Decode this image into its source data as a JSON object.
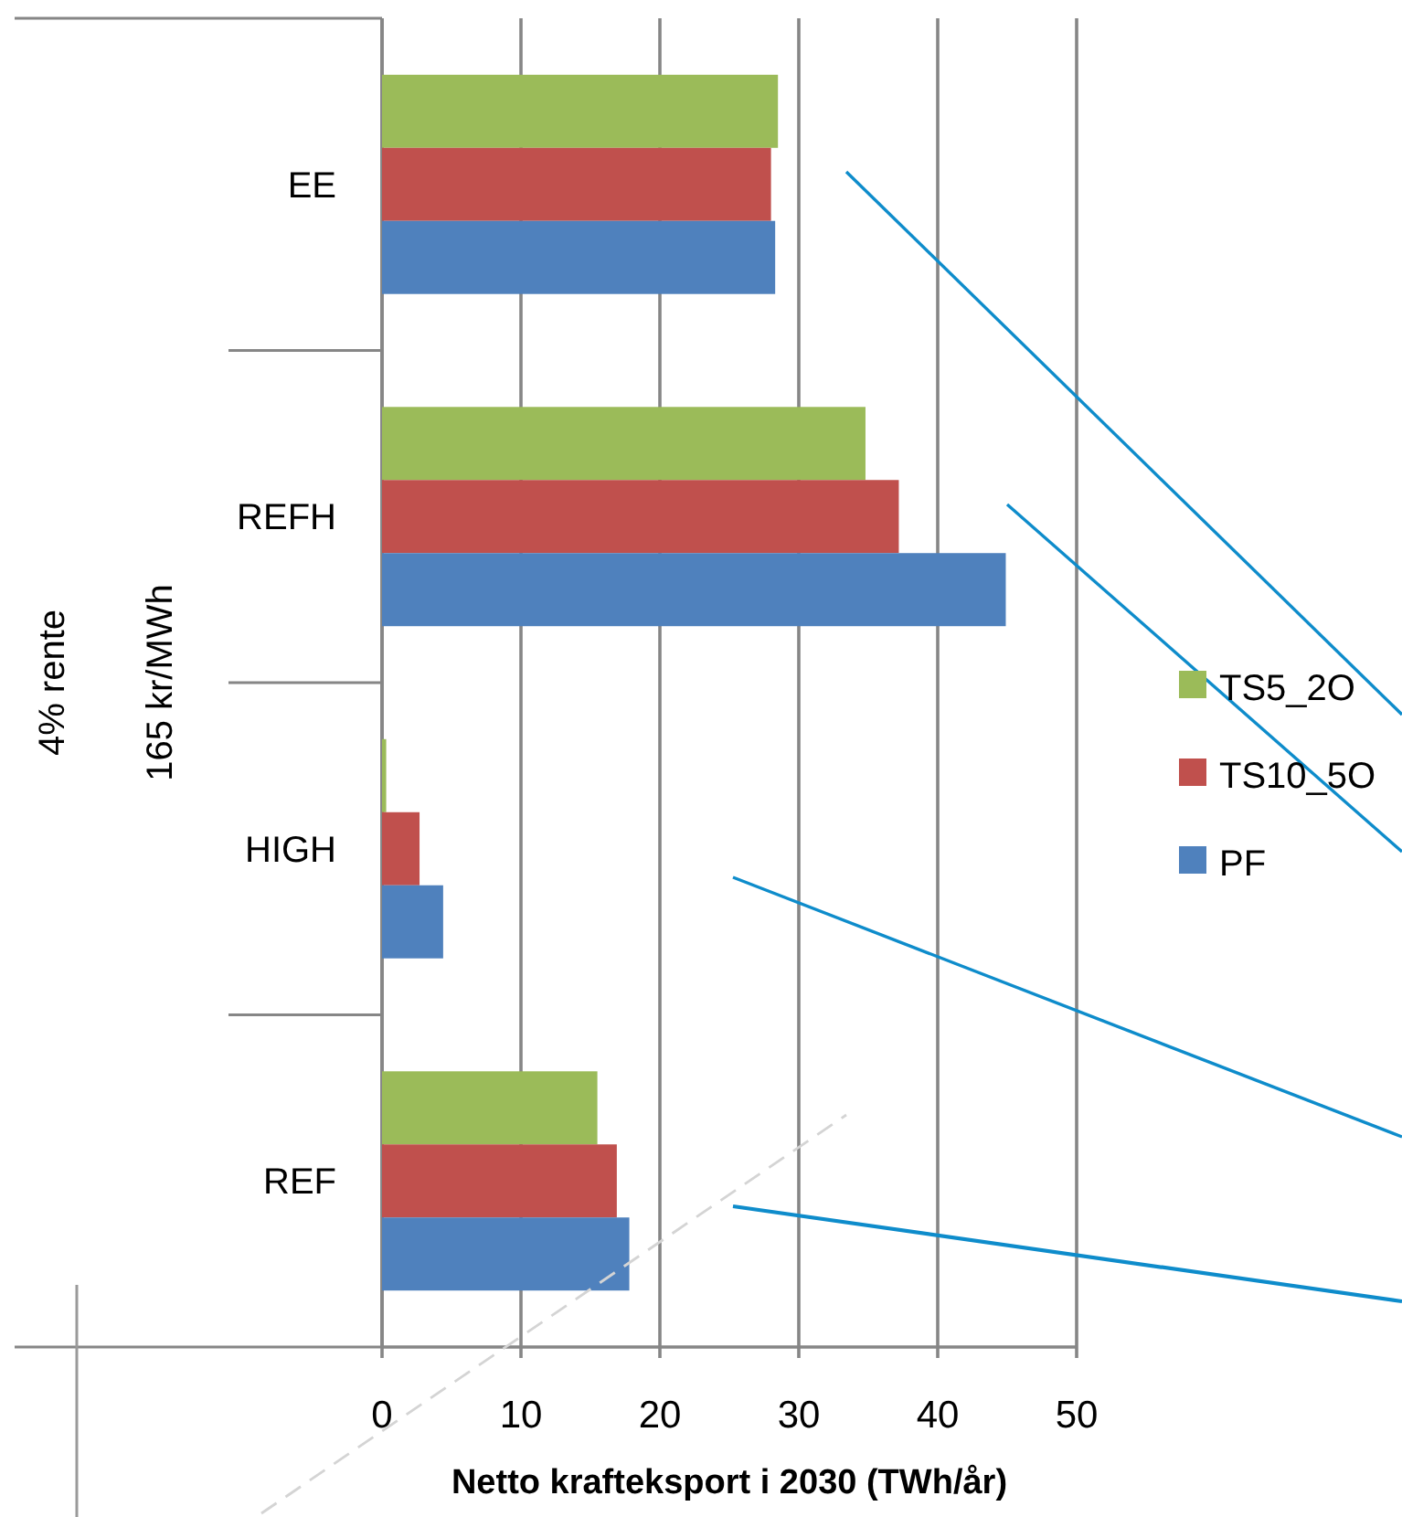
{
  "chart_data": {
    "type": "bar",
    "orientation": "horizontal",
    "categories": [
      "EE",
      "REFH",
      "HIGH",
      "REF"
    ],
    "series": [
      {
        "name": "TS5_2O",
        "color": "#9bbb59",
        "values": [
          28.5,
          34.8,
          0.3,
          15.5
        ]
      },
      {
        "name": "TS10_5O",
        "color": "#c0504d",
        "values": [
          28.0,
          37.2,
          2.7,
          16.9
        ]
      },
      {
        "name": "PF",
        "color": "#4f81bd",
        "values": [
          28.3,
          44.9,
          4.4,
          17.8
        ]
      }
    ],
    "xlim": [
      0,
      50
    ],
    "xticks": [
      0,
      10,
      20,
      30,
      40,
      50
    ],
    "grid": "x",
    "legend": "right",
    "xlabel": "Netto krafteksport i 2030 (TWh/år)",
    "ylabel": "165 kr/MWh",
    "annotations": [
      "4% rente"
    ]
  }
}
